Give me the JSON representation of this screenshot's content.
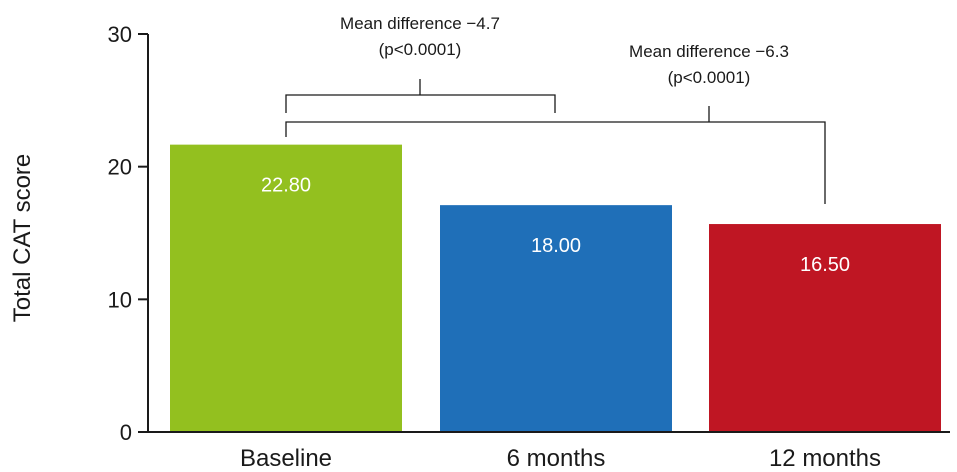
{
  "chart_data": {
    "type": "bar",
    "categories": [
      "Baseline",
      "6 months",
      "12 months"
    ],
    "values": [
      22.8,
      18.0,
      16.5
    ],
    "value_labels": [
      "22.80",
      "18.00",
      "16.50"
    ],
    "colors": [
      "#93c01f",
      "#1f6fb8",
      "#bf1623"
    ],
    "ylabel": "Total CAT score",
    "ylim": [
      0,
      30
    ],
    "yticks": [
      0,
      10,
      20,
      30
    ],
    "grid": false,
    "annotations": [
      {
        "text": [
          "Mean difference −4.7",
          "(p<0.0001)"
        ],
        "from": "Baseline",
        "to": "6 months"
      },
      {
        "text": [
          "Mean difference −6.3",
          "(p<0.0001)"
        ],
        "from": "Baseline",
        "to": "12 months"
      }
    ]
  }
}
